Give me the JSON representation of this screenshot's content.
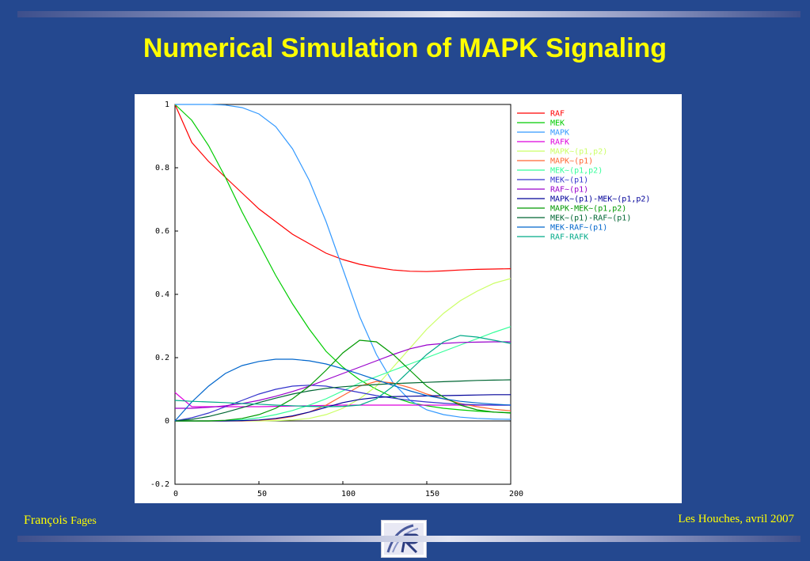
{
  "slide": {
    "title": "Numerical Simulation of MAPK Signaling",
    "author_first": "François",
    "author_last": "Fages",
    "venue": "Les Houches, avril 2007"
  },
  "colors": {
    "background": "#24488f",
    "title": "#ffff00",
    "footer_text": "#ffff00",
    "chart_background": "#ffffff"
  },
  "logo": {
    "icon": "inria-logo-icon"
  },
  "chart_data": {
    "type": "line",
    "title": "",
    "xlabel": "",
    "ylabel": "",
    "xlim": [
      0,
      200
    ],
    "ylim": [
      -0.2,
      1
    ],
    "xticks": [
      0,
      50,
      100,
      150,
      200
    ],
    "yticks": [
      -0.2,
      0,
      0.2,
      0.4,
      0.6,
      0.8,
      1
    ],
    "xtick_labels": [
      "0",
      "50",
      "100",
      "150",
      "200"
    ],
    "ytick_labels": [
      "-0.2",
      "0",
      "0.2",
      "0.4",
      "0.6",
      "0.8",
      "1"
    ],
    "grid": false,
    "legend_position": "right",
    "x": [
      0,
      10,
      20,
      30,
      40,
      50,
      60,
      70,
      80,
      90,
      100,
      110,
      120,
      130,
      140,
      150,
      160,
      170,
      180,
      190,
      200
    ],
    "series": [
      {
        "name": "RAF",
        "color": "#ff0000",
        "values": [
          1.0,
          0.88,
          0.82,
          0.77,
          0.72,
          0.67,
          0.63,
          0.59,
          0.56,
          0.53,
          0.51,
          0.495,
          0.485,
          0.477,
          0.473,
          0.472,
          0.474,
          0.477,
          0.479,
          0.48,
          0.481
        ]
      },
      {
        "name": "MEK",
        "color": "#00cc00",
        "values": [
          1.0,
          0.95,
          0.87,
          0.77,
          0.66,
          0.56,
          0.46,
          0.37,
          0.29,
          0.22,
          0.17,
          0.13,
          0.1,
          0.075,
          0.058,
          0.048,
          0.04,
          0.035,
          0.031,
          0.028,
          0.026
        ]
      },
      {
        "name": "MAPK",
        "color": "#3399ff",
        "values": [
          1.0,
          1.0,
          1.0,
          0.998,
          0.99,
          0.97,
          0.93,
          0.86,
          0.76,
          0.63,
          0.48,
          0.33,
          0.21,
          0.12,
          0.065,
          0.035,
          0.02,
          0.012,
          0.008,
          0.006,
          0.005
        ]
      },
      {
        "name": "RAFK",
        "color": "#dd00dd",
        "values": [
          0.09,
          0.045,
          0.045,
          0.045,
          0.045,
          0.045,
          0.046,
          0.047,
          0.048,
          0.049,
          0.05,
          0.05,
          0.05,
          0.05,
          0.05,
          0.05,
          0.05,
          0.05,
          0.05,
          0.05,
          0.05
        ]
      },
      {
        "name": "MAPK~(p1,p2)",
        "color": "#ccff66",
        "values": [
          0,
          0,
          0,
          0,
          0,
          0,
          0.001,
          0.003,
          0.008,
          0.02,
          0.04,
          0.07,
          0.11,
          0.17,
          0.23,
          0.29,
          0.34,
          0.38,
          0.41,
          0.435,
          0.45
        ]
      },
      {
        "name": "MAPK~(p1)",
        "color": "#ff6633",
        "values": [
          0,
          0,
          0,
          0,
          0,
          0.002,
          0.006,
          0.014,
          0.028,
          0.05,
          0.08,
          0.11,
          0.125,
          0.12,
          0.105,
          0.085,
          0.07,
          0.055,
          0.045,
          0.037,
          0.032
        ]
      },
      {
        "name": "MEK~(p1,p2)",
        "color": "#33ff99",
        "values": [
          0,
          0,
          0,
          0.001,
          0.004,
          0.01,
          0.02,
          0.033,
          0.05,
          0.07,
          0.095,
          0.12,
          0.14,
          0.16,
          0.18,
          0.2,
          0.22,
          0.24,
          0.26,
          0.28,
          0.298
        ]
      },
      {
        "name": "MEK~(p1)",
        "color": "#3333cc",
        "values": [
          0,
          0.01,
          0.025,
          0.045,
          0.065,
          0.085,
          0.1,
          0.11,
          0.113,
          0.11,
          0.1,
          0.09,
          0.08,
          0.072,
          0.065,
          0.06,
          0.056,
          0.053,
          0.051,
          0.05,
          0.05
        ]
      },
      {
        "name": "RAF~(p1)",
        "color": "#9900cc",
        "values": [
          0.04,
          0.04,
          0.043,
          0.048,
          0.055,
          0.065,
          0.078,
          0.093,
          0.11,
          0.13,
          0.15,
          0.17,
          0.19,
          0.21,
          0.228,
          0.24,
          0.245,
          0.248,
          0.249,
          0.25,
          0.25
        ]
      },
      {
        "name": "MAPK~(p1)-MEK~(p1,p2)",
        "color": "#000099",
        "values": [
          0,
          0,
          0,
          0,
          0.001,
          0.003,
          0.008,
          0.016,
          0.028,
          0.043,
          0.058,
          0.068,
          0.074,
          0.077,
          0.078,
          0.079,
          0.08,
          0.081,
          0.082,
          0.083,
          0.083
        ]
      },
      {
        "name": "MAPK-MEK~(p1,p2)",
        "color": "#009900",
        "values": [
          0,
          0,
          0,
          0.002,
          0.008,
          0.02,
          0.04,
          0.07,
          0.11,
          0.16,
          0.215,
          0.255,
          0.25,
          0.21,
          0.16,
          0.11,
          0.075,
          0.05,
          0.035,
          0.028,
          0.025
        ]
      },
      {
        "name": "MEK~(p1)-RAF~(p1)",
        "color": "#006633",
        "values": [
          0,
          0.005,
          0.014,
          0.027,
          0.042,
          0.058,
          0.072,
          0.085,
          0.095,
          0.103,
          0.108,
          0.112,
          0.115,
          0.118,
          0.12,
          0.122,
          0.124,
          0.126,
          0.128,
          0.129,
          0.13
        ]
      },
      {
        "name": "MEK-RAF~(p1)",
        "color": "#0066cc",
        "values": [
          0,
          0.06,
          0.11,
          0.15,
          0.175,
          0.188,
          0.195,
          0.195,
          0.19,
          0.18,
          0.165,
          0.148,
          0.13,
          0.112,
          0.095,
          0.08,
          0.07,
          0.062,
          0.057,
          0.053,
          0.05
        ]
      },
      {
        "name": "RAF-RAFK",
        "color": "#00aa88",
        "values": [
          0.065,
          0.062,
          0.06,
          0.058,
          0.055,
          0.053,
          0.05,
          0.048,
          0.046,
          0.045,
          0.046,
          0.05,
          0.07,
          0.11,
          0.16,
          0.21,
          0.25,
          0.27,
          0.265,
          0.255,
          0.245
        ]
      }
    ]
  }
}
